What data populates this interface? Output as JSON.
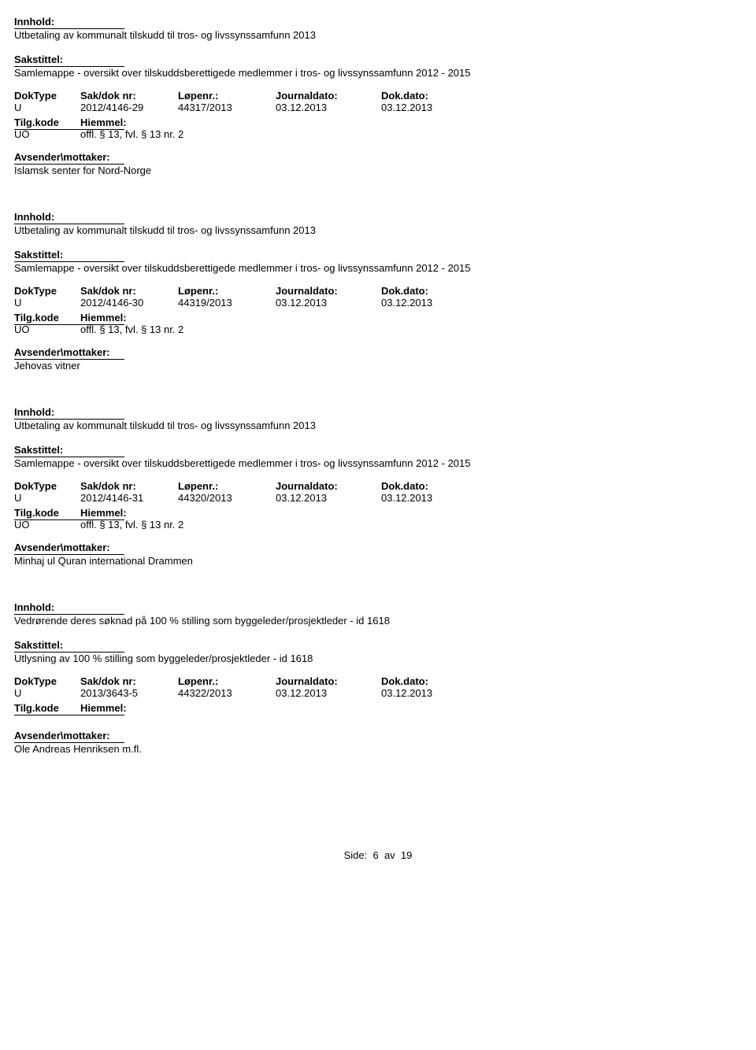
{
  "labels": {
    "innhold": "Innhold:",
    "sakstittel": "Sakstittel:",
    "doktype": "DokType",
    "sakdok": "Sak/dok nr:",
    "lopenr": "Løpenr.:",
    "journaldato": "Journaldato:",
    "dokdato": "Dok.dato:",
    "tilgkode": "Tilg.kode",
    "hiemmel": "Hiemmel:",
    "avsender": "Avsender\\mottaker:"
  },
  "records": [
    {
      "innhold": "Utbetaling av kommunalt tilskudd til tros- og livssynssamfunn 2013",
      "sakstittel": "Samlemappe - oversikt over tilskuddsberettigede medlemmer i tros- og livssynssamfunn 2012 - 2015",
      "doktype": "U",
      "sakdok": "2012/4146-29",
      "lopenr": "44317/2013",
      "journaldato": "03.12.2013",
      "dokdato": "03.12.2013",
      "tilgkode": "UO",
      "hiemmel": "offl. § 13, fvl. § 13 nr. 2",
      "avsender": "Islamsk senter for Nord-Norge",
      "sender_gap": false
    },
    {
      "innhold": "Utbetaling av kommunalt tilskudd til tros- og livssynssamfunn 2013",
      "sakstittel": "Samlemappe - oversikt over tilskuddsberettigede medlemmer i tros- og livssynssamfunn 2012 - 2015",
      "doktype": "U",
      "sakdok": "2012/4146-30",
      "lopenr": "44319/2013",
      "journaldato": "03.12.2013",
      "dokdato": "03.12.2013",
      "tilgkode": "UO",
      "hiemmel": "offl. § 13, fvl. § 13 nr. 2",
      "avsender": "Jehovas vitner",
      "sender_gap": false
    },
    {
      "innhold": "Utbetaling av kommunalt tilskudd til tros- og livssynssamfunn 2013",
      "sakstittel": "Samlemappe - oversikt over tilskuddsberettigede medlemmer i tros- og livssynssamfunn 2012 - 2015",
      "doktype": "U",
      "sakdok": "2012/4146-31",
      "lopenr": "44320/2013",
      "journaldato": "03.12.2013",
      "dokdato": "03.12.2013",
      "tilgkode": "UO",
      "hiemmel": "offl. § 13, fvl. § 13 nr. 2",
      "avsender": "Minhaj ul Quran international Drammen",
      "sender_gap": false
    },
    {
      "innhold": "Vedrørende deres søknad på 100 % stilling som byggeleder/prosjektleder - id 1618",
      "sakstittel": "Utlysning av 100 % stilling som byggeleder/prosjektleder - id 1618",
      "doktype": "U",
      "sakdok": "2013/3643-5",
      "lopenr": "44322/2013",
      "journaldato": "03.12.2013",
      "dokdato": "03.12.2013",
      "tilgkode": "",
      "hiemmel": "",
      "avsender": "Ole Andreas Henriksen m.fl.",
      "sender_gap": true
    }
  ],
  "footer": {
    "prefix": "Side:",
    "page": "6",
    "sep": "av",
    "total": "19"
  }
}
